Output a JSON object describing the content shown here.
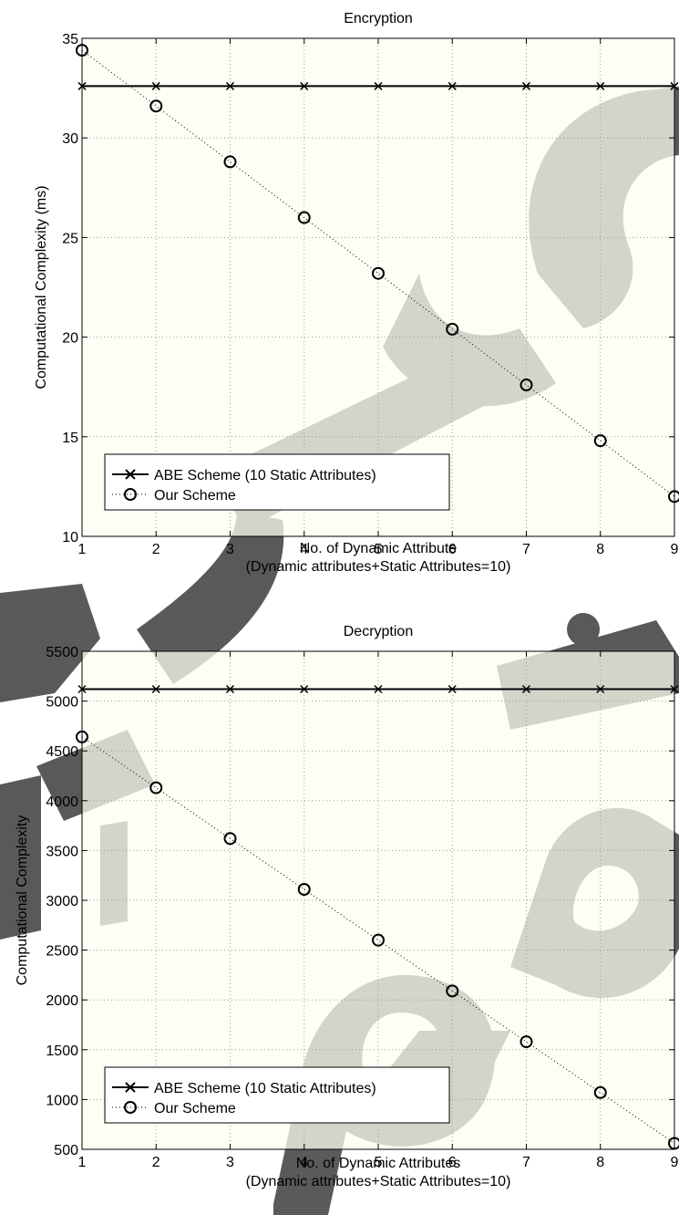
{
  "chart_data": [
    {
      "type": "line",
      "title": "Encryption",
      "xlabel": "No. of Dynamic Attribute",
      "xlabel2": "(Dynamic attributes+Static Attributes=10)",
      "ylabel": "Computational Complexity (ms)",
      "x": [
        1,
        2,
        3,
        4,
        5,
        6,
        7,
        8,
        9
      ],
      "xlim": [
        1,
        9
      ],
      "ylim": [
        10,
        35
      ],
      "xticks": [
        "1",
        "2",
        "3",
        "4",
        "5",
        "6",
        "7",
        "8",
        "9"
      ],
      "yticks": [
        "10",
        "15",
        "20",
        "25",
        "30",
        "35"
      ],
      "grid": true,
      "legend_position": "bottom-left",
      "series": [
        {
          "name": "ABE Scheme (10 Static Attributes)",
          "marker": "x",
          "line": "solid",
          "values": [
            32.6,
            32.6,
            32.6,
            32.6,
            32.6,
            32.6,
            32.6,
            32.6,
            32.6
          ]
        },
        {
          "name": "Our Scheme",
          "marker": "o",
          "line": "dotted",
          "values": [
            34.4,
            31.6,
            28.8,
            26.0,
            23.2,
            20.4,
            17.6,
            14.8,
            12.0
          ]
        }
      ]
    },
    {
      "type": "line",
      "title": "Decryption",
      "xlabel": "No. of Dynamic Attributes",
      "xlabel2": "(Dynamic attributes+Static Attributes=10)",
      "ylabel": "Computational Complexity",
      "x": [
        1,
        2,
        3,
        4,
        5,
        6,
        7,
        8,
        9
      ],
      "xlim": [
        1,
        9
      ],
      "ylim": [
        500,
        5500
      ],
      "xticks": [
        "1",
        "2",
        "3",
        "4",
        "5",
        "6",
        "7",
        "8",
        "9"
      ],
      "yticks": [
        "500",
        "1000",
        "1500",
        "2000",
        "2500",
        "3000",
        "3500",
        "4000",
        "4500",
        "5000",
        "5500"
      ],
      "grid": true,
      "legend_position": "bottom-left",
      "series": [
        {
          "name": "ABE Scheme (10 Static Attributes)",
          "marker": "x",
          "line": "solid",
          "values": [
            5120,
            5120,
            5120,
            5120,
            5120,
            5120,
            5120,
            5120,
            5120
          ]
        },
        {
          "name": "Our Scheme",
          "marker": "o",
          "line": "dotted",
          "values": [
            4640,
            4130,
            3620,
            3110,
            2600,
            2090,
            1580,
            1070,
            560
          ]
        }
      ]
    }
  ],
  "colors": {
    "plot_background": "#fffef2",
    "grid": "#9a9a9a",
    "line": "#000000",
    "watermark": "#555555"
  }
}
